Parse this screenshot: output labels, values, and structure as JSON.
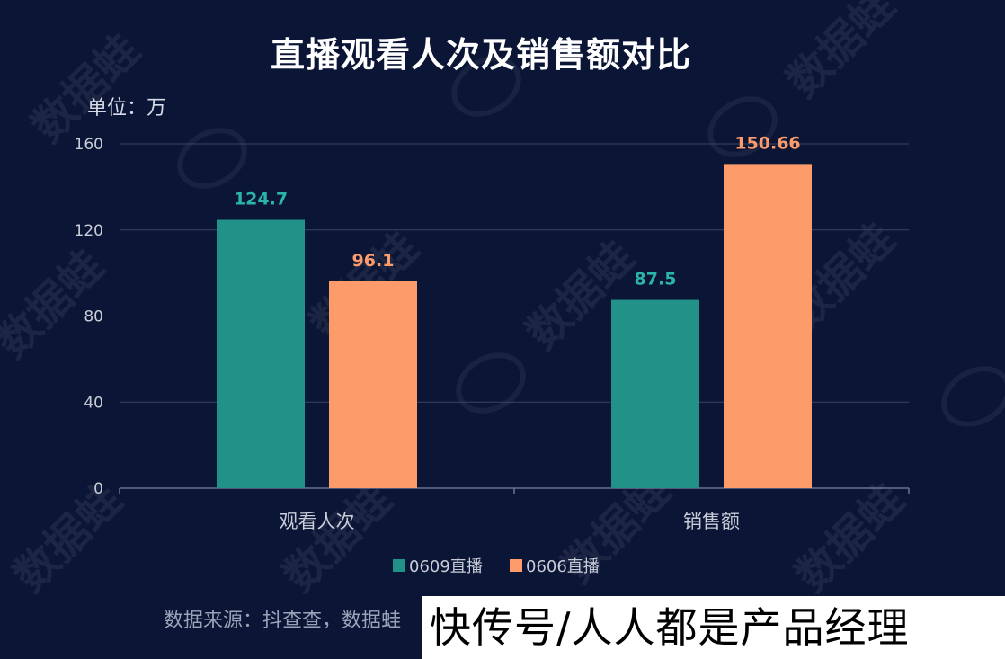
{
  "title": "直播观看人次及销售额对比",
  "unit_label": "单位：万",
  "source_text": "数据来源：抖查查，数据蛙",
  "footer_brand": "快传号/人人都是产品经理",
  "watermark_text": "数据蛙",
  "chart_data": {
    "type": "bar",
    "categories": [
      "观看人次",
      "销售额"
    ],
    "series": [
      {
        "name": "0609直播",
        "values": [
          124.7,
          87.5
        ],
        "color": "#229187",
        "label_color": "#2bb5a8"
      },
      {
        "name": "0606直播",
        "values": [
          96.1,
          150.66
        ],
        "color": "#fd9b6b",
        "label_color": "#fd9b6b"
      }
    ],
    "data_labels": [
      [
        "124.7",
        "87.5"
      ],
      [
        "96.1",
        "150.66"
      ]
    ],
    "ylim": [
      0,
      160
    ],
    "yticks": [
      0,
      40,
      80,
      120,
      160
    ],
    "ytick_labels": [
      "0",
      "40",
      "80",
      "120",
      "160"
    ],
    "grid": true,
    "legend_position": "bottom-center",
    "xlabel": "",
    "ylabel": ""
  },
  "colors": {
    "background": "#0b1535",
    "grid": "#3a4560",
    "axis_text": "#c8cdd8"
  }
}
